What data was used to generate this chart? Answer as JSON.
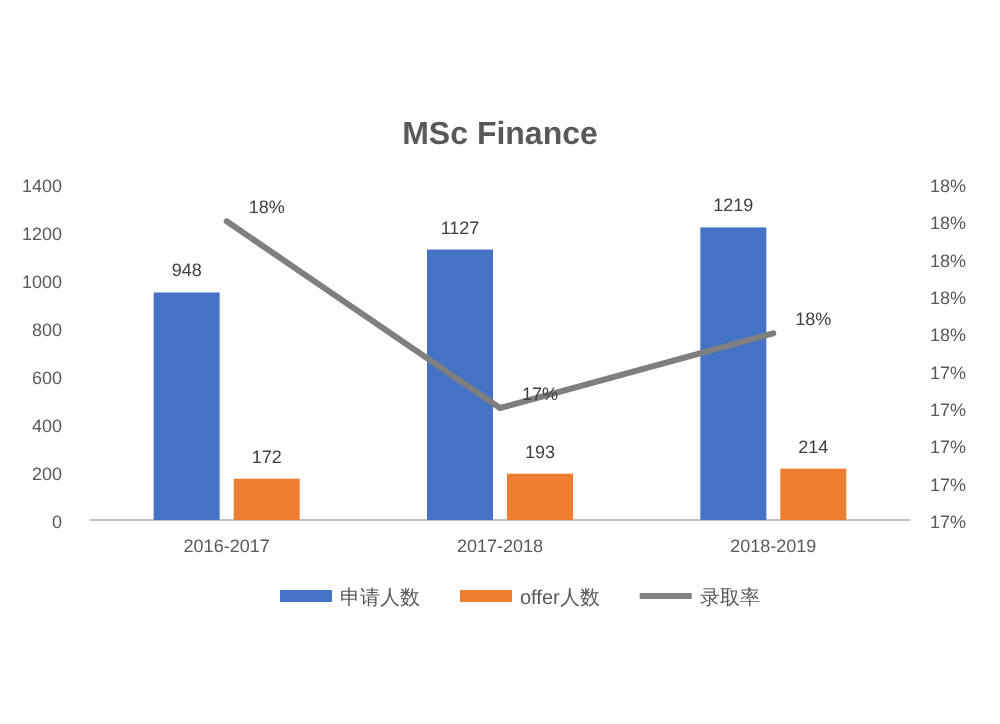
{
  "chart_data": {
    "type": "bar",
    "title": "MSc Finance",
    "categories": [
      "2016-2017",
      "2017-2018",
      "2018-2019"
    ],
    "series": [
      {
        "name": "申请人数",
        "color": "#4472c4",
        "values": [
          948,
          1127,
          1219
        ],
        "data_labels": true
      },
      {
        "name": "offer人数",
        "color": "#ed7d31",
        "values": [
          172,
          193,
          214
        ],
        "data_labels": true
      },
      {
        "name": "录取率",
        "type": "line",
        "axis": "y2",
        "color": "#7f7f7f",
        "values": [
          17.8,
          17.3,
          17.5
        ],
        "value_labels": [
          "18%",
          "17%",
          "18%"
        ]
      }
    ],
    "ylim": [
      0,
      1400
    ],
    "yticks": [
      0,
      200,
      400,
      600,
      800,
      1000,
      1200,
      1400
    ],
    "y2lim": [
      17.0,
      17.9
    ],
    "y2ticks": [
      {
        "value": 17.0,
        "label": "17%"
      },
      {
        "value": 17.1,
        "label": "17%"
      },
      {
        "value": 17.2,
        "label": "17%"
      },
      {
        "value": 17.3,
        "label": "17%"
      },
      {
        "value": 17.4,
        "label": "17%"
      },
      {
        "value": 17.5,
        "label": "18%"
      },
      {
        "value": 17.6,
        "label": "18%"
      },
      {
        "value": 17.7,
        "label": "18%"
      },
      {
        "value": 17.8,
        "label": "18%"
      },
      {
        "value": 17.9,
        "label": "18%"
      }
    ],
    "legend": "bottom",
    "grid": false
  }
}
